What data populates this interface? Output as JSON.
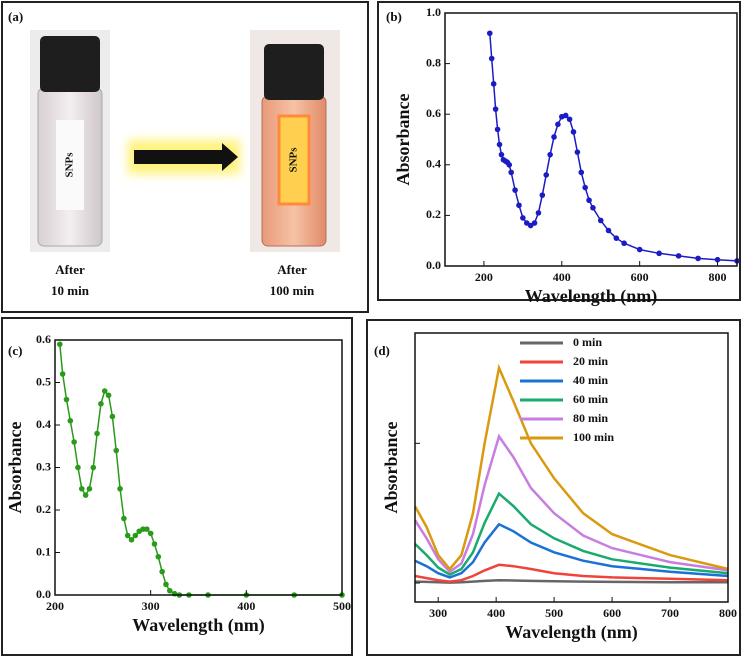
{
  "panel_a": {
    "label": "(a)",
    "vials": [
      {
        "tag": "SNPs",
        "caption": [
          "After",
          "10 min"
        ]
      },
      {
        "tag": "SNPs",
        "caption": [
          "After",
          "100 min"
        ]
      }
    ]
  },
  "chart_data": [
    {
      "type": "line",
      "label": "(b)",
      "xlabel": "Wavelength (nm)",
      "ylabel": "Absorbance",
      "xlim": [
        100,
        850
      ],
      "xticks": [
        200,
        400,
        600,
        800
      ],
      "ylim": [
        0,
        1.0
      ],
      "yticks": [
        {
          "value": 0,
          "label": "0.0"
        },
        0.2,
        0.4,
        0.6,
        0.8,
        {
          "value": 1.0,
          "label": "1.0"
        }
      ],
      "x": [
        215,
        220,
        225,
        230,
        235,
        240,
        245,
        250,
        255,
        260,
        265,
        270,
        280,
        290,
        300,
        310,
        320,
        330,
        340,
        350,
        360,
        370,
        380,
        390,
        400,
        410,
        420,
        430,
        440,
        450,
        460,
        470,
        480,
        500,
        520,
        540,
        560,
        600,
        650,
        700,
        750,
        800,
        850
      ],
      "series": [
        {
          "color": "#1c1cc4",
          "marker": true,
          "values": [
            0.92,
            0.82,
            0.72,
            0.62,
            0.54,
            0.48,
            0.44,
            0.42,
            0.415,
            0.41,
            0.4,
            0.37,
            0.3,
            0.24,
            0.19,
            0.17,
            0.16,
            0.17,
            0.21,
            0.28,
            0.36,
            0.44,
            0.51,
            0.56,
            0.59,
            0.595,
            0.58,
            0.53,
            0.45,
            0.37,
            0.31,
            0.26,
            0.23,
            0.18,
            0.14,
            0.11,
            0.09,
            0.065,
            0.05,
            0.04,
            0.03,
            0.025,
            0.02
          ]
        }
      ]
    },
    {
      "type": "line",
      "label": "(c)",
      "xlabel": "Wavelength (nm)",
      "ylabel": "Absorbance",
      "xlim": [
        200,
        500
      ],
      "xticks": [
        200,
        300,
        400,
        500
      ],
      "ylim": [
        0,
        0.6
      ],
      "yticks": [
        {
          "value": 0,
          "label": "0.0"
        },
        0.1,
        0.2,
        0.3,
        0.4,
        0.5,
        0.6
      ],
      "x": [
        205,
        208,
        212,
        216,
        220,
        224,
        228,
        232,
        236,
        240,
        244,
        248,
        252,
        256,
        260,
        264,
        268,
        272,
        276,
        280,
        284,
        288,
        292,
        296,
        300,
        304,
        308,
        312,
        316,
        320,
        325,
        330,
        340,
        360,
        400,
        450,
        500
      ],
      "series": [
        {
          "color": "#2a9a1a",
          "marker": true,
          "values": [
            0.59,
            0.52,
            0.46,
            0.41,
            0.36,
            0.3,
            0.25,
            0.235,
            0.25,
            0.3,
            0.38,
            0.45,
            0.48,
            0.47,
            0.42,
            0.34,
            0.25,
            0.18,
            0.14,
            0.13,
            0.14,
            0.15,
            0.155,
            0.155,
            0.145,
            0.12,
            0.09,
            0.055,
            0.025,
            0.01,
            0.003,
            0,
            0,
            0,
            0,
            0,
            0
          ]
        }
      ]
    },
    {
      "type": "line",
      "label": "(d)",
      "xlabel": "Wavelength (nm)",
      "ylabel": "Absorbance",
      "xlim": [
        260,
        800
      ],
      "xticks": [
        300,
        400,
        500,
        600,
        700,
        800
      ],
      "ylim": [
        -0.136,
        1.79
      ],
      "yticks": [
        0,
        1
      ],
      "ytick_labels": false,
      "x": [
        260,
        280,
        300,
        320,
        340,
        360,
        380,
        405,
        430,
        460,
        500,
        550,
        600,
        700,
        800
      ],
      "series": [
        {
          "name": "0 min",
          "color": "#666666",
          "values": [
            0.01,
            0.008,
            0.005,
            0.003,
            0.005,
            0.01,
            0.015,
            0.02,
            0.018,
            0.015,
            0.012,
            0.01,
            0.008,
            0.006,
            0.005
          ]
        },
        {
          "name": "20 min",
          "color": "#f0433a",
          "values": [
            0.05,
            0.035,
            0.02,
            0.01,
            0.02,
            0.05,
            0.09,
            0.13,
            0.12,
            0.1,
            0.07,
            0.05,
            0.04,
            0.03,
            0.02
          ]
        },
        {
          "name": "40 min",
          "color": "#1a72d4",
          "values": [
            0.16,
            0.12,
            0.07,
            0.04,
            0.07,
            0.15,
            0.29,
            0.42,
            0.37,
            0.29,
            0.22,
            0.16,
            0.12,
            0.08,
            0.05
          ]
        },
        {
          "name": "60 min",
          "color": "#1aaa6e",
          "values": [
            0.28,
            0.2,
            0.11,
            0.06,
            0.1,
            0.22,
            0.43,
            0.64,
            0.55,
            0.42,
            0.32,
            0.23,
            0.17,
            0.11,
            0.07
          ]
        },
        {
          "name": "80 min",
          "color": "#c77ee0",
          "values": [
            0.45,
            0.32,
            0.17,
            0.08,
            0.14,
            0.35,
            0.7,
            1.05,
            0.9,
            0.68,
            0.5,
            0.34,
            0.25,
            0.15,
            0.09
          ]
        },
        {
          "name": "100 min",
          "color": "#d99a10",
          "values": [
            0.55,
            0.4,
            0.2,
            0.1,
            0.2,
            0.5,
            1.0,
            1.54,
            1.3,
            1.0,
            0.75,
            0.5,
            0.35,
            0.2,
            0.1
          ]
        }
      ]
    }
  ]
}
